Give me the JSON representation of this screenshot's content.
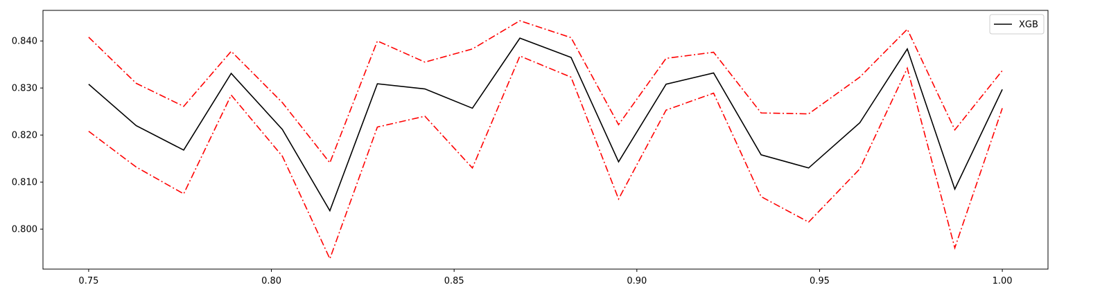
{
  "chart_data": {
    "type": "line",
    "title": "",
    "xlabel": "",
    "ylabel": "",
    "xlim": [
      0.7375,
      1.0125
    ],
    "ylim": [
      0.7915,
      0.8465
    ],
    "grid": false,
    "legend_position": "top-right",
    "x": [
      0.75,
      0.763,
      0.776,
      0.789,
      0.803,
      0.816,
      0.829,
      0.842,
      0.855,
      0.868,
      0.882,
      0.895,
      0.908,
      0.921,
      0.934,
      0.947,
      0.961,
      0.974,
      0.987,
      1.0
    ],
    "x_ticks": [
      "0.75",
      "0.80",
      "0.85",
      "0.90",
      "0.95",
      "1.00"
    ],
    "x_tick_values": [
      0.75,
      0.8,
      0.85,
      0.9,
      0.95,
      1.0
    ],
    "y_ticks": [
      "0.800",
      "0.810",
      "0.820",
      "0.830",
      "0.840"
    ],
    "y_tick_values": [
      0.8,
      0.81,
      0.82,
      0.83,
      0.84
    ],
    "series": [
      {
        "name": "XGB",
        "color": "#000000",
        "style": "solid",
        "in_legend": true,
        "values": [
          0.8308,
          0.822,
          0.8168,
          0.8331,
          0.8212,
          0.8039,
          0.8309,
          0.8298,
          0.8257,
          0.8406,
          0.8365,
          0.8143,
          0.8308,
          0.8332,
          0.8158,
          0.813,
          0.8226,
          0.8383,
          0.8085,
          0.8297
        ]
      },
      {
        "color": "#ff0000",
        "style": "dashdot",
        "in_legend": false,
        "values": [
          0.8408,
          0.831,
          0.8261,
          0.8378,
          0.8269,
          0.8141,
          0.84,
          0.8355,
          0.8383,
          0.8443,
          0.8407,
          0.8222,
          0.8363,
          0.8376,
          0.8247,
          0.8245,
          0.8323,
          0.8425,
          0.8211,
          0.8337
        ]
      },
      {
        "color": "#ff0000",
        "style": "dashdot",
        "in_legend": false,
        "values": [
          0.8208,
          0.8132,
          0.8075,
          0.8285,
          0.8155,
          0.7937,
          0.8217,
          0.824,
          0.813,
          0.8368,
          0.8323,
          0.8064,
          0.8253,
          0.8289,
          0.8069,
          0.8015,
          0.8128,
          0.8342,
          0.796,
          0.8257
        ]
      }
    ]
  }
}
